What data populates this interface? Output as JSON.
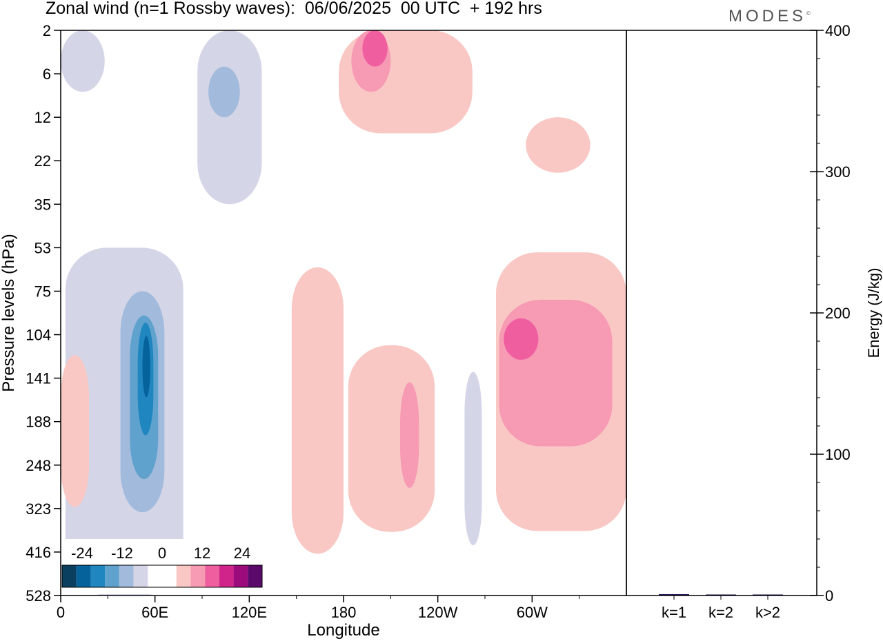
{
  "header": {
    "title": "Zonal wind (n=1 Rossby waves):  06/06/2025  00 UTC  + 192 hrs",
    "brand": "MODES",
    "brand_mark": "©"
  },
  "chart_data": [
    {
      "type": "heatmap",
      "title": "Zonal wind (n=1 Rossby waves):  06/06/2025  00 UTC  + 192 hrs",
      "xlabel": "Longitude",
      "ylabel": "Pressure levels (hPa)",
      "x_ticks": [
        "0",
        "60E",
        "120E",
        "180",
        "120W",
        "60W"
      ],
      "x_tick_degrees": [
        0,
        60,
        120,
        180,
        240,
        300
      ],
      "xlim": [
        0,
        360
      ],
      "y_ticks": [
        2,
        6,
        12,
        22,
        35,
        53,
        75,
        104,
        141,
        188,
        248,
        323,
        416,
        528
      ],
      "y_scale": "categorical-levels",
      "colorbar": {
        "tick_labels": [
          "-24",
          "-12",
          "0",
          "12",
          "24"
        ],
        "tick_values": [
          -24,
          -12,
          0,
          12,
          24
        ],
        "boundaries": [
          -30,
          -24,
          -18,
          -12,
          -6,
          0,
          6,
          12,
          18,
          24,
          30
        ],
        "colors": [
          "#0a3f5f",
          "#06629a",
          "#1f86c0",
          "#5fa2cd",
          "#a2badb",
          "#d4d6e8",
          "#ffffff",
          "#ffffff",
          "#f9c8c4",
          "#f79ab4",
          "#ef5fa0",
          "#d1248b",
          "#9c0b7c",
          "#5b0a6b"
        ],
        "placement": "bottom-left"
      },
      "regions": [
        {
          "sign": "negative",
          "level": 1,
          "color": "#d4d6e8",
          "lon": [
            0,
            28
          ],
          "p": [
            8,
            2
          ]
        },
        {
          "sign": "negative",
          "level": 1,
          "color": "#d4d6e8",
          "lon": [
            87,
            128
          ],
          "p": [
            2,
            35
          ]
        },
        {
          "sign": "negative",
          "level": 2,
          "color": "#a2badb",
          "lon": [
            94,
            114
          ],
          "p": [
            5,
            12
          ]
        },
        {
          "sign": "negative",
          "level": 1,
          "color": "#d4d6e8",
          "lon": [
            3,
            78
          ],
          "p": [
            53,
            528
          ]
        },
        {
          "sign": "negative",
          "level": 2,
          "color": "#a2badb",
          "lon": [
            38,
            66
          ],
          "p": [
            75,
            330
          ]
        },
        {
          "sign": "negative",
          "level": 3,
          "color": "#5fa2cd",
          "lon": [
            44,
            62
          ],
          "p": [
            90,
            270
          ]
        },
        {
          "sign": "negative",
          "level": 4,
          "color": "#1f86c0",
          "lon": [
            49,
            59
          ],
          "p": [
            95,
            205
          ]
        },
        {
          "sign": "negative",
          "level": 5,
          "color": "#06629a",
          "lon": [
            52,
            57
          ],
          "p": [
            105,
            160
          ]
        },
        {
          "sign": "negative",
          "level": 1,
          "color": "#d4d6e8",
          "lon": [
            257,
            268
          ],
          "p": [
            135,
            400
          ]
        },
        {
          "sign": "positive",
          "level": 1,
          "color": "#f9c8c4",
          "lon": [
            177,
            262
          ],
          "p": [
            2,
            15
          ]
        },
        {
          "sign": "positive",
          "level": 2,
          "color": "#f79ab4",
          "lon": [
            185,
            210
          ],
          "p": [
            2,
            8
          ]
        },
        {
          "sign": "positive",
          "level": 3,
          "color": "#ef5fa0",
          "lon": [
            192,
            208
          ],
          "p": [
            2,
            5
          ]
        },
        {
          "sign": "positive",
          "level": 1,
          "color": "#f9c8c4",
          "lon": [
            296,
            337
          ],
          "p": [
            12,
            25
          ]
        },
        {
          "sign": "positive",
          "level": 1,
          "color": "#f9c8c4",
          "lon": [
            147,
            180
          ],
          "p": [
            62,
            420
          ]
        },
        {
          "sign": "positive",
          "level": 1,
          "color": "#f9c8c4",
          "lon": [
            183,
            238
          ],
          "p": [
            112,
            370
          ]
        },
        {
          "sign": "positive",
          "level": 2,
          "color": "#f79ab4",
          "lon": [
            216,
            228
          ],
          "p": [
            145,
            285
          ]
        },
        {
          "sign": "positive",
          "level": 1,
          "color": "#f9c8c4",
          "lon": [
            277,
            360
          ],
          "p": [
            55,
            368
          ]
        },
        {
          "sign": "positive",
          "level": 2,
          "color": "#f79ab4",
          "lon": [
            279,
            351
          ],
          "p": [
            80,
            220
          ]
        },
        {
          "sign": "positive",
          "level": 3,
          "color": "#ef5fa0",
          "lon": [
            282,
            304
          ],
          "p": [
            92,
            124
          ]
        },
        {
          "sign": "positive",
          "level": 1,
          "color": "#f9c8c4",
          "lon": [
            0,
            18
          ],
          "p": [
            120,
            320
          ]
        }
      ]
    },
    {
      "type": "bar",
      "categories": [
        "k=1",
        "k=2",
        "k>2"
      ],
      "values": [
        1,
        0.5,
        0.5
      ],
      "ylabel": "Energy (J/kg)",
      "ylim": [
        0,
        400
      ],
      "y_ticks": [
        0,
        100,
        200,
        300,
        400
      ],
      "bar_color": "#2a1a5e"
    }
  ]
}
